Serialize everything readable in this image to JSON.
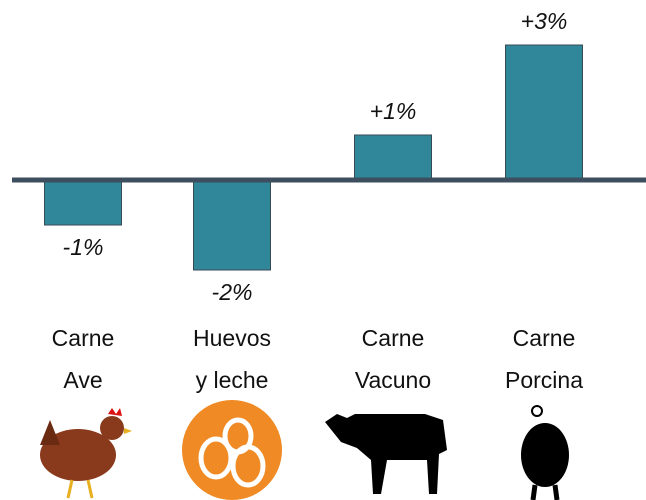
{
  "chart_data": {
    "type": "bar",
    "categories": [
      "Carne\nAve",
      "Huevos\ny leche",
      "Carne\nVacuno",
      "Carne\nPorcina"
    ],
    "values": [
      -1,
      -2,
      1,
      3
    ],
    "value_labels": [
      "-1%",
      "-2%",
      "+1%",
      "+3%"
    ],
    "color": "#30879a"
  }
}
